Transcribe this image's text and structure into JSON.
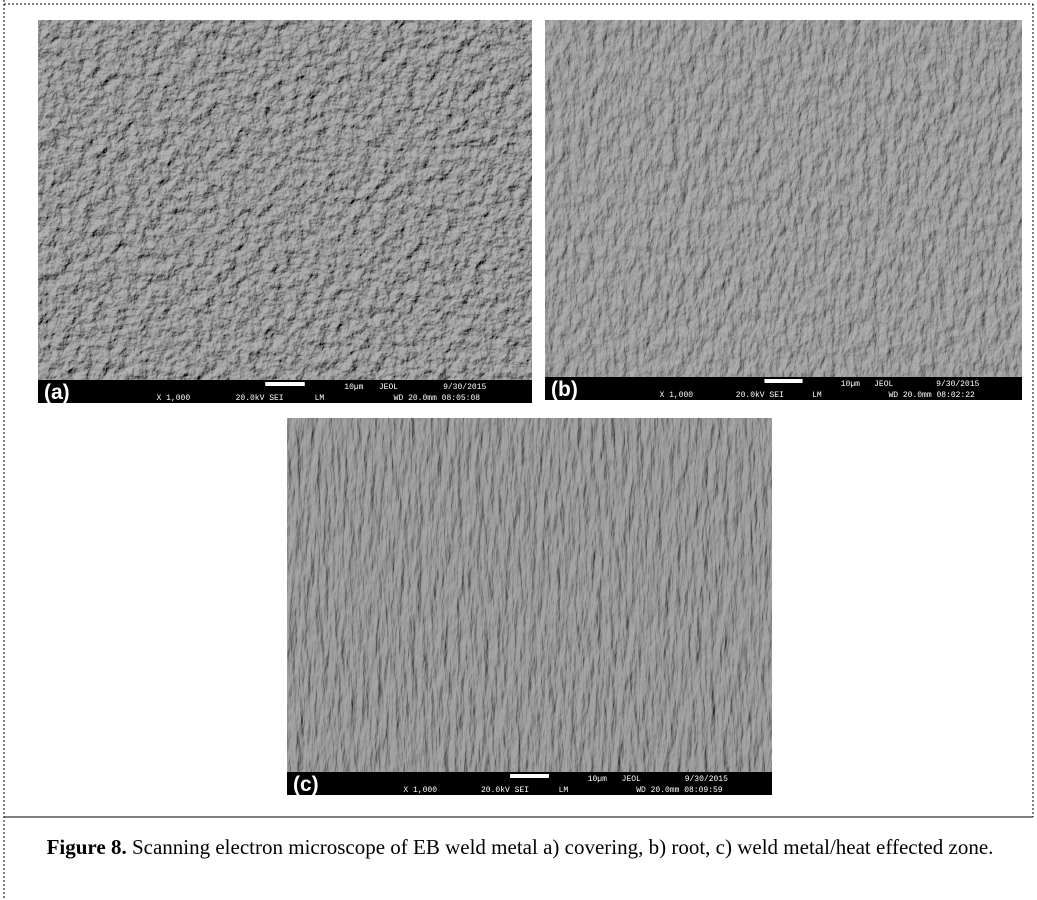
{
  "panels": [
    {
      "label": "(a)",
      "magnification": "X 1,000",
      "voltage": "20.0kV SEI",
      "mode": "LM",
      "scale": "10µm",
      "brand": "JEOL",
      "date": "9/30/2015",
      "wd_time": "WD 20.0mm 08:05:08"
    },
    {
      "label": "(b)",
      "magnification": "X 1,000",
      "voltage": "20.0kV SEI",
      "mode": "LM",
      "scale": "10µm",
      "brand": "JEOL",
      "date": "9/30/2015",
      "wd_time": "WD 20.0mm 08:02:22"
    },
    {
      "label": "(c)",
      "magnification": "X 1,000",
      "voltage": "20.0kV SEI",
      "mode": "LM",
      "scale": "10µm",
      "brand": "JEOL",
      "date": "9/30/2015",
      "wd_time": "WD 20.0mm 08:09:59"
    }
  ],
  "caption": {
    "label": "Figure 8.",
    "text": "Scanning electron microscope of EB weld metal a) covering,  b) root, c) weld metal/heat effected zone."
  }
}
